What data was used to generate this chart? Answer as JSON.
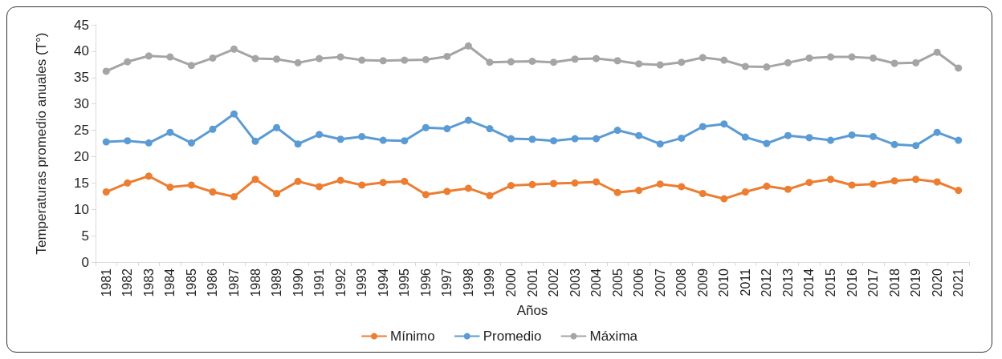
{
  "chart_data": {
    "type": "line",
    "xlabel": "Años",
    "ylabel": "Temperaturas promedio anuales (T°)",
    "categories": [
      "1981",
      "1982",
      "1983",
      "1984",
      "1985",
      "1986",
      "1987",
      "1988",
      "1989",
      "1990",
      "1991",
      "1992",
      "1993",
      "1994",
      "1995",
      "1996",
      "1997",
      "1998",
      "1999",
      "2000",
      "2001",
      "2002",
      "2003",
      "2004",
      "2005",
      "2006",
      "2007",
      "2008",
      "2009",
      "2010",
      "2011",
      "2012",
      "2013",
      "2014",
      "2015",
      "2016",
      "2017",
      "2018",
      "2019",
      "2020",
      "2021"
    ],
    "series": [
      {
        "name": "Mínimo",
        "color": "#ed7d31",
        "values": [
          13.3,
          15,
          16.3,
          14.2,
          14.6,
          13.3,
          12.4,
          15.7,
          13,
          15.3,
          14.3,
          15.5,
          14.6,
          15.1,
          15.3,
          12.8,
          13.4,
          14,
          12.6,
          14.5,
          14.7,
          14.9,
          15,
          15.2,
          13.2,
          13.6,
          14.8,
          14.3,
          13,
          12,
          13.3,
          14.4,
          13.8,
          15.1,
          15.7,
          14.6,
          14.8,
          15.4,
          15.7,
          15.2,
          13.6
        ]
      },
      {
        "name": "Promedio",
        "color": "#5b9bd5",
        "values": [
          22.8,
          23,
          22.6,
          24.6,
          22.6,
          25.2,
          28.1,
          22.9,
          25.5,
          22.4,
          24.2,
          23.3,
          23.8,
          23.1,
          23,
          25.5,
          25.3,
          26.9,
          25.3,
          23.4,
          23.3,
          23,
          23.4,
          23.4,
          25,
          24,
          22.4,
          23.5,
          25.7,
          26.2,
          23.7,
          22.5,
          24,
          23.6,
          23.1,
          24.1,
          23.8,
          22.3,
          22.1,
          24.6,
          23.1
        ]
      },
      {
        "name": "Máxima",
        "color": "#a5a5a5",
        "values": [
          36.2,
          38,
          39.1,
          38.9,
          37.3,
          38.7,
          40.4,
          38.6,
          38.5,
          37.8,
          38.6,
          38.9,
          38.3,
          38.2,
          38.3,
          38.4,
          39,
          41,
          37.9,
          38,
          38.1,
          37.9,
          38.5,
          38.6,
          38.2,
          37.6,
          37.4,
          37.9,
          38.8,
          38.3,
          37.1,
          37,
          37.8,
          38.7,
          38.9,
          38.9,
          38.7,
          37.7,
          37.8,
          39.8,
          36.8
        ]
      }
    ],
    "ylim": [
      0,
      45
    ],
    "yticks": [
      0,
      5,
      10,
      15,
      20,
      25,
      30,
      35,
      40,
      45
    ],
    "grid": false,
    "legend": "bottom",
    "marker": "circle",
    "line_style": "solid"
  }
}
